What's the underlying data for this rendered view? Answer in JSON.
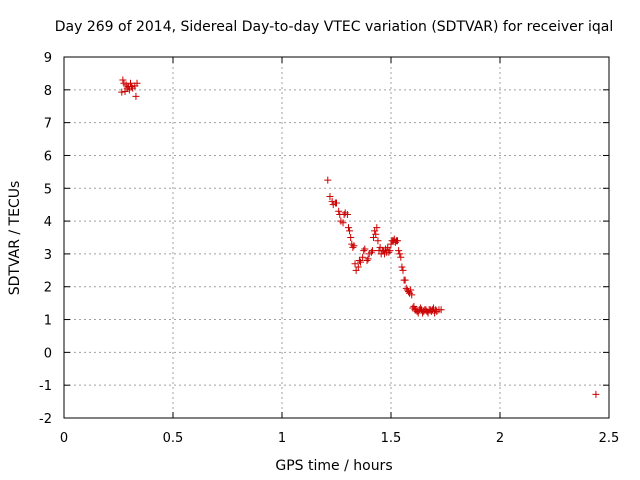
{
  "chart_data": {
    "type": "scatter",
    "title": "Day 269 of 2014, Sidereal Day-to-day VTEC variation (SDTVAR) for receiver iqal",
    "xlabel": "GPS time / hours",
    "ylabel": "SDTVAR / TECUs",
    "xlim": [
      0,
      2.5
    ],
    "ylim": [
      -2,
      9
    ],
    "xticks": [
      0,
      0.5,
      1,
      1.5,
      2,
      2.5
    ],
    "xtick_labels": [
      "0",
      "0.5",
      "1",
      "1.5",
      "2",
      "2.5"
    ],
    "yticks": [
      -2,
      -1,
      0,
      1,
      2,
      3,
      4,
      5,
      6,
      7,
      8,
      9
    ],
    "ytick_labels": [
      "-2",
      "-1",
      "0",
      "1",
      "2",
      "3",
      "4",
      "5",
      "6",
      "7",
      "8",
      "9"
    ],
    "grid": true,
    "marker": "+",
    "marker_color": "#cc0000",
    "series": [
      {
        "name": "SDTVAR",
        "x": [
          0.265,
          0.27,
          0.275,
          0.28,
          0.285,
          0.29,
          0.295,
          0.3,
          0.305,
          0.31,
          0.315,
          0.325,
          0.33,
          0.335,
          1.21,
          1.22,
          1.23,
          1.235,
          1.245,
          1.25,
          1.26,
          1.265,
          1.27,
          1.28,
          1.285,
          1.29,
          1.3,
          1.305,
          1.31,
          1.315,
          1.32,
          1.325,
          1.33,
          1.335,
          1.34,
          1.35,
          1.355,
          1.36,
          1.37,
          1.375,
          1.38,
          1.39,
          1.395,
          1.4,
          1.41,
          1.415,
          1.42,
          1.425,
          1.43,
          1.435,
          1.44,
          1.445,
          1.45,
          1.455,
          1.46,
          1.465,
          1.47,
          1.475,
          1.48,
          1.485,
          1.49,
          1.495,
          1.5,
          1.505,
          1.51,
          1.515,
          1.52,
          1.525,
          1.53,
          1.535,
          1.54,
          1.545,
          1.55,
          1.555,
          1.56,
          1.565,
          1.57,
          1.575,
          1.58,
          1.585,
          1.59,
          1.595,
          1.6,
          1.605,
          1.61,
          1.615,
          1.62,
          1.625,
          1.63,
          1.635,
          1.64,
          1.645,
          1.65,
          1.655,
          1.66,
          1.665,
          1.67,
          1.675,
          1.68,
          1.685,
          1.69,
          1.695,
          1.7,
          1.705,
          1.71,
          1.72,
          1.73,
          2.44
        ],
        "y": [
          7.93,
          8.3,
          8.2,
          7.95,
          8.15,
          8.05,
          8.1,
          8.0,
          8.2,
          8.1,
          8.05,
          8.12,
          7.8,
          8.2,
          5.25,
          4.75,
          4.6,
          4.5,
          4.55,
          4.55,
          4.3,
          4.2,
          4.0,
          3.95,
          4.2,
          4.25,
          4.2,
          3.8,
          3.7,
          3.5,
          3.3,
          3.2,
          3.25,
          2.7,
          2.5,
          2.6,
          2.8,
          2.75,
          2.9,
          3.1,
          3.15,
          2.8,
          2.85,
          3.0,
          3.05,
          3.1,
          3.5,
          3.7,
          3.6,
          3.8,
          3.4,
          3.1,
          3.2,
          3.0,
          3.1,
          3.1,
          3.0,
          3.15,
          3.05,
          3.2,
          3.05,
          3.1,
          3.3,
          3.4,
          3.4,
          3.45,
          3.35,
          3.4,
          3.4,
          3.1,
          3.0,
          2.9,
          2.6,
          2.5,
          2.2,
          2.2,
          1.95,
          1.9,
          1.85,
          1.8,
          1.9,
          1.75,
          1.35,
          1.4,
          1.3,
          1.3,
          1.25,
          1.2,
          1.3,
          1.35,
          1.3,
          1.2,
          1.25,
          1.3,
          1.3,
          1.25,
          1.2,
          1.3,
          1.3,
          1.25,
          1.3,
          1.35,
          1.2,
          1.3,
          1.25,
          1.3,
          1.3,
          -1.28
        ]
      }
    ]
  }
}
